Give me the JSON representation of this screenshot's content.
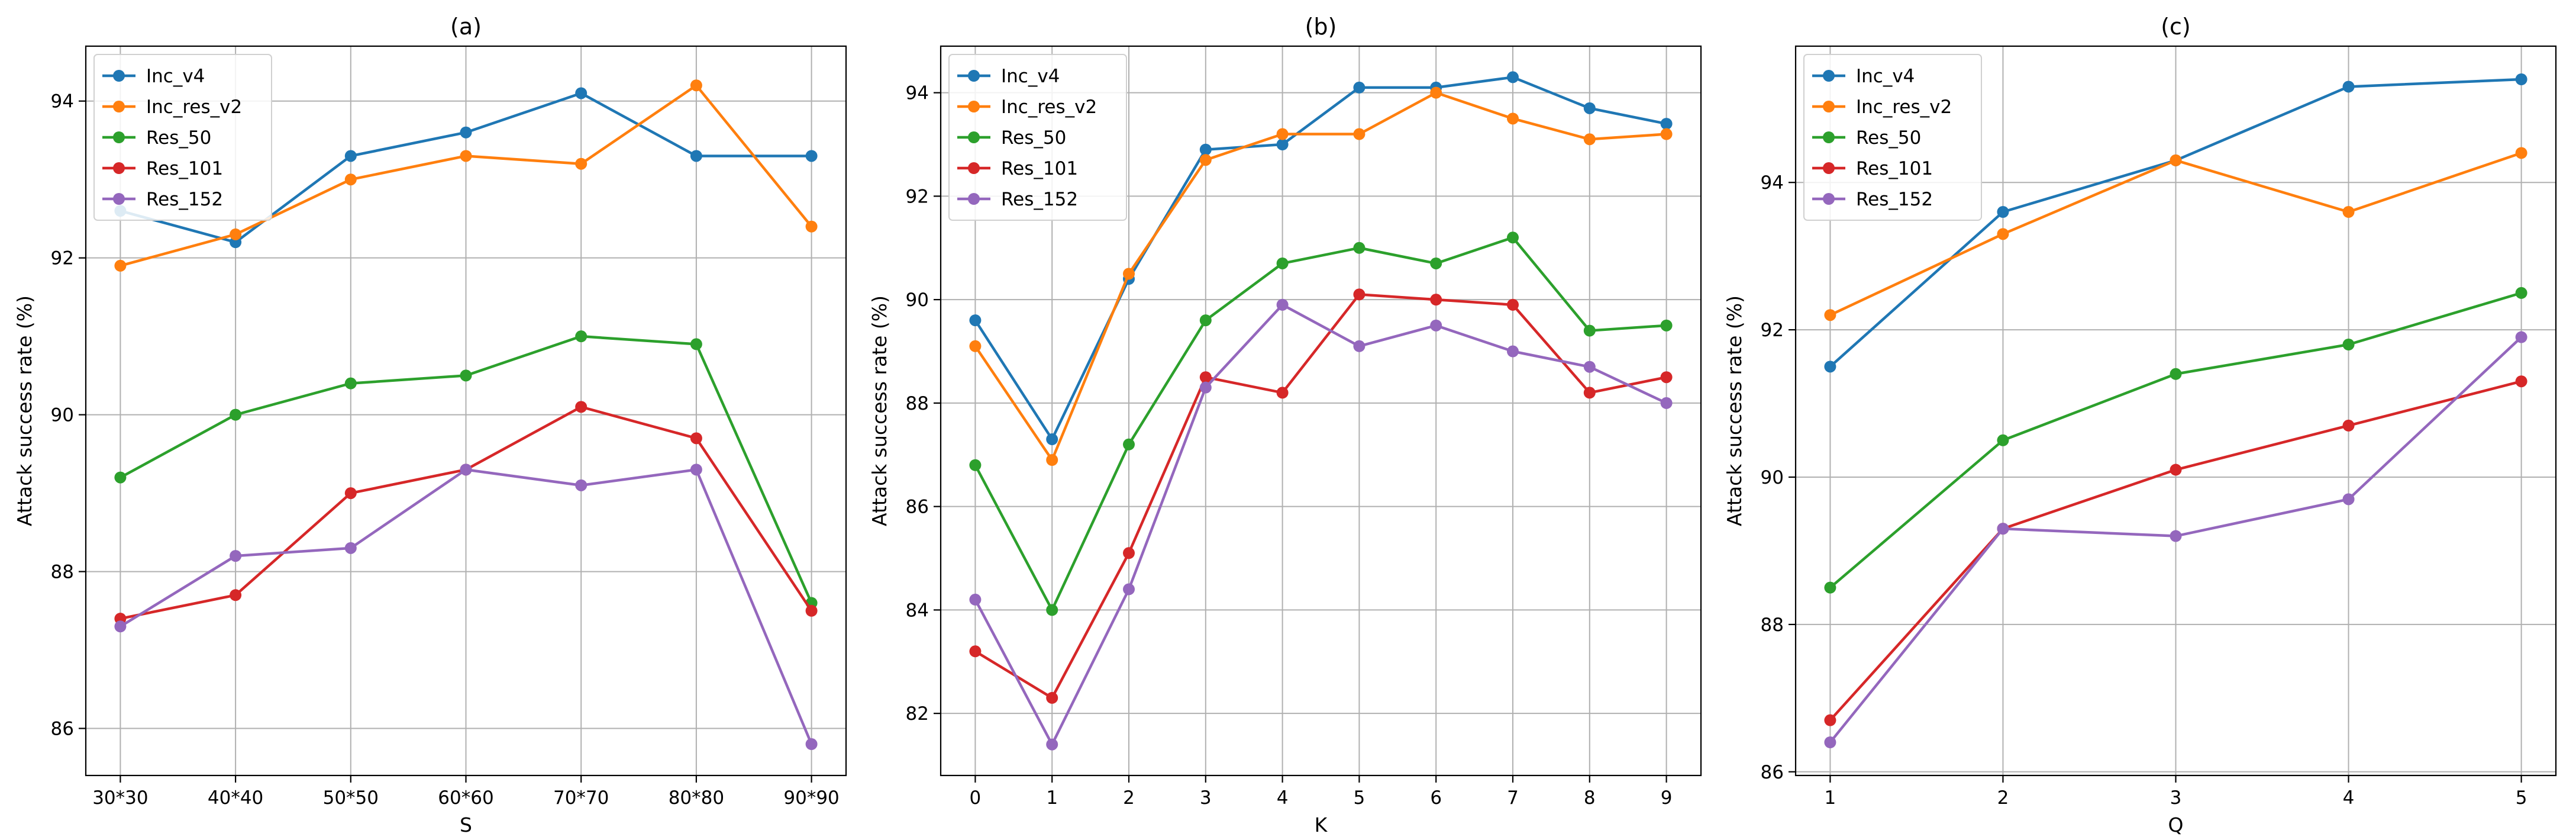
{
  "colors": {
    "Inc_v4": "#1f77b4",
    "Inc_res_v2": "#ff7f0e",
    "Res_50": "#2ca02c",
    "Res_101": "#d62728",
    "Res_152": "#9467bd"
  },
  "chart_data": [
    {
      "type": "line",
      "title": "(a)",
      "xlabel": "S",
      "ylabel": "Attack success rate (%)",
      "categories": [
        "30*30",
        "40*40",
        "50*50",
        "60*60",
        "70*70",
        "80*80",
        "90*90"
      ],
      "x": [
        0,
        1,
        2,
        3,
        4,
        5,
        6
      ],
      "xlim": [
        -0.3,
        6.3
      ],
      "ylim": [
        85.4,
        94.7
      ],
      "yticks": [
        86,
        88,
        90,
        92,
        94
      ],
      "legend_loc": "top-left",
      "grid": true,
      "series": [
        {
          "name": "Inc_v4",
          "values": [
            92.6,
            92.2,
            93.3,
            93.6,
            94.1,
            93.3,
            93.3
          ]
        },
        {
          "name": "Inc_res_v2",
          "values": [
            91.9,
            92.3,
            93.0,
            93.3,
            93.2,
            94.2,
            92.4
          ]
        },
        {
          "name": "Res_50",
          "values": [
            89.2,
            90.0,
            90.4,
            90.5,
            91.0,
            90.9,
            87.6
          ]
        },
        {
          "name": "Res_101",
          "values": [
            87.4,
            87.7,
            89.0,
            89.3,
            90.1,
            89.7,
            87.5
          ]
        },
        {
          "name": "Res_152",
          "values": [
            87.3,
            88.2,
            88.3,
            89.3,
            89.1,
            89.3,
            85.8
          ]
        }
      ]
    },
    {
      "type": "line",
      "title": "(b)",
      "xlabel": "K",
      "ylabel": "Attack success rate (%)",
      "categories": [
        "0",
        "1",
        "2",
        "3",
        "4",
        "5",
        "6",
        "7",
        "8",
        "9"
      ],
      "x": [
        0,
        1,
        2,
        3,
        4,
        5,
        6,
        7,
        8,
        9
      ],
      "xlim": [
        -0.45,
        9.45
      ],
      "ylim": [
        80.8,
        94.9
      ],
      "yticks": [
        82,
        84,
        86,
        88,
        90,
        92,
        94
      ],
      "legend_loc": "top-left",
      "grid": true,
      "series": [
        {
          "name": "Inc_v4",
          "values": [
            89.6,
            87.3,
            90.4,
            92.9,
            93.0,
            94.1,
            94.1,
            94.3,
            93.7,
            93.4
          ]
        },
        {
          "name": "Inc_res_v2",
          "values": [
            89.1,
            86.9,
            90.5,
            92.7,
            93.2,
            93.2,
            94.0,
            93.5,
            93.1,
            93.2
          ]
        },
        {
          "name": "Res_50",
          "values": [
            86.8,
            84.0,
            87.2,
            89.6,
            90.7,
            91.0,
            90.7,
            91.2,
            89.4,
            89.5
          ]
        },
        {
          "name": "Res_101",
          "values": [
            83.2,
            82.3,
            85.1,
            88.5,
            88.2,
            90.1,
            90.0,
            89.9,
            88.2,
            88.5
          ]
        },
        {
          "name": "Res_152",
          "values": [
            84.2,
            81.4,
            84.4,
            88.3,
            89.9,
            89.1,
            89.5,
            89.0,
            88.7,
            88.0
          ]
        }
      ]
    },
    {
      "type": "line",
      "title": "(c)",
      "xlabel": "Q",
      "ylabel": "Attack success rate (%)",
      "categories": [
        "1",
        "2",
        "3",
        "4",
        "5"
      ],
      "x": [
        1,
        2,
        3,
        4,
        5
      ],
      "xlim": [
        0.8,
        5.2
      ],
      "ylim": [
        85.95,
        95.85
      ],
      "yticks": [
        86,
        88,
        90,
        92,
        94
      ],
      "legend_loc": "top-left",
      "grid": true,
      "series": [
        {
          "name": "Inc_v4",
          "values": [
            91.5,
            93.6,
            94.3,
            95.3,
            95.4
          ]
        },
        {
          "name": "Inc_res_v2",
          "values": [
            92.2,
            93.3,
            94.3,
            93.6,
            94.4
          ]
        },
        {
          "name": "Res_50",
          "values": [
            88.5,
            90.5,
            91.4,
            91.8,
            92.5
          ]
        },
        {
          "name": "Res_101",
          "values": [
            86.7,
            89.3,
            90.1,
            90.7,
            91.3
          ]
        },
        {
          "name": "Res_152",
          "values": [
            86.4,
            89.3,
            89.2,
            89.7,
            91.9
          ]
        }
      ]
    }
  ]
}
